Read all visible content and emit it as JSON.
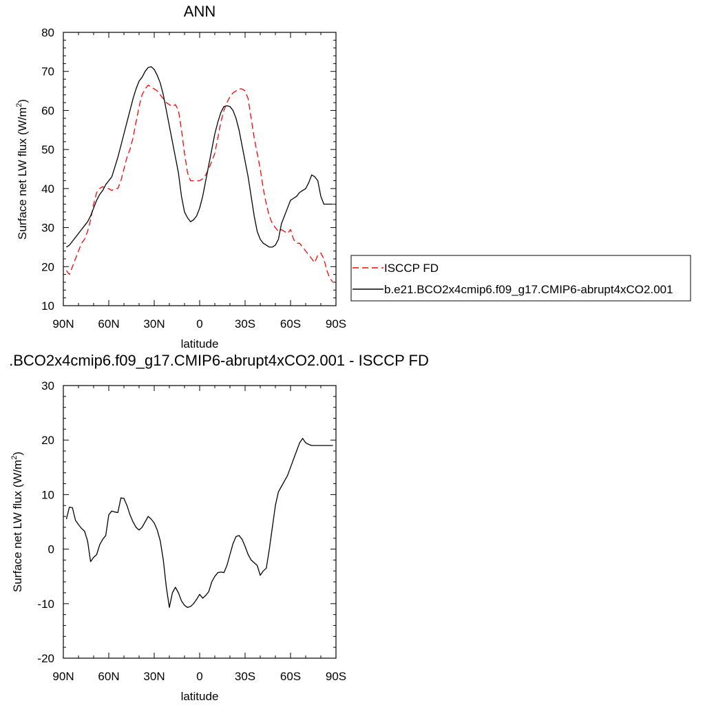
{
  "chart_data": [
    {
      "type": "line",
      "title": "ANN",
      "xlabel": "latitude",
      "ylabel": "Surface net LW flux (W/m",
      "ylabel_sup": "2",
      "ylabel_close": ")",
      "xlim": [
        90,
        -90
      ],
      "ylim": [
        10,
        80
      ],
      "xticks": [
        90,
        60,
        30,
        0,
        -30,
        -60,
        -90
      ],
      "xtick_labels": [
        "90N",
        "60N",
        "30N",
        "0",
        "30S",
        "60S",
        "90S"
      ],
      "yticks": [
        10,
        20,
        30,
        40,
        50,
        60,
        70,
        80
      ],
      "ytick_labels": [
        "10",
        "20",
        "30",
        "40",
        "50",
        "60",
        "70",
        "80"
      ],
      "legend_position": "right",
      "series": [
        {
          "name": "ISCCP FD",
          "color": "#ff0000",
          "dash": true,
          "x": [
            88,
            86,
            84,
            82,
            80,
            78,
            76,
            74,
            72,
            70,
            68,
            66,
            64,
            62,
            60,
            58,
            56,
            54,
            52,
            50,
            48,
            46,
            44,
            42,
            40,
            38,
            36,
            34,
            32,
            30,
            28,
            26,
            24,
            22,
            20,
            18,
            16,
            14,
            12,
            10,
            8,
            6,
            4,
            2,
            0,
            -2,
            -4,
            -6,
            -8,
            -10,
            -12,
            -14,
            -16,
            -18,
            -20,
            -22,
            -24,
            -26,
            -28,
            -30,
            -32,
            -34,
            -36,
            -38,
            -40,
            -42,
            -44,
            -46,
            -48,
            -50,
            -52,
            -54,
            -56,
            -58,
            -60,
            -62,
            -64,
            -66,
            -68,
            -70,
            -72,
            -74,
            -76,
            -78,
            -80,
            -82,
            -84,
            -86,
            -88
          ],
          "y": [
            19,
            18,
            20,
            22,
            24,
            26,
            27,
            29,
            32,
            36,
            39,
            40,
            40.5,
            40,
            40,
            39.5,
            40,
            40,
            42,
            45,
            48,
            50,
            53,
            57,
            61,
            64,
            65.5,
            66.5,
            66,
            65.5,
            65,
            64,
            63,
            62,
            61.5,
            61,
            61.5,
            60,
            55,
            49,
            44,
            42,
            42,
            42,
            42,
            42.5,
            43.5,
            45,
            47,
            49,
            53,
            57,
            60,
            62,
            63.5,
            64.5,
            65,
            65.5,
            65.5,
            65,
            63,
            58,
            53,
            49,
            45,
            40,
            36,
            33,
            31,
            30,
            29,
            29.5,
            29,
            28.5,
            29.5,
            27,
            26,
            26,
            25,
            24,
            23,
            22,
            21,
            23,
            23.5,
            22,
            19,
            17,
            16
          ]
        },
        {
          "name": "b.e21.BCO2x4cmip6.f09_g17.CMIP6-abrupt4xCO2.001",
          "color": "#000000",
          "dash": false,
          "x": [
            88,
            86,
            84,
            82,
            80,
            78,
            76,
            74,
            72,
            70,
            68,
            66,
            64,
            62,
            60,
            58,
            56,
            54,
            52,
            50,
            48,
            46,
            44,
            42,
            40,
            38,
            36,
            34,
            32,
            30,
            28,
            26,
            24,
            22,
            20,
            18,
            16,
            14,
            12,
            10,
            8,
            6,
            4,
            2,
            0,
            -2,
            -4,
            -6,
            -8,
            -10,
            -12,
            -14,
            -16,
            -18,
            -20,
            -22,
            -24,
            -26,
            -28,
            -30,
            -32,
            -34,
            -36,
            -38,
            -40,
            -42,
            -44,
            -46,
            -48,
            -50,
            -52,
            -54,
            -56,
            -58,
            -60,
            -62,
            -64,
            -66,
            -68,
            -70,
            -72,
            -74,
            -76,
            -78,
            -80,
            -82,
            -84,
            -86,
            -88
          ],
          "y": [
            25,
            25.5,
            26.5,
            27.5,
            28.5,
            29.5,
            30.5,
            31.5,
            33,
            35,
            37,
            38.5,
            39.5,
            41,
            42,
            43,
            45.5,
            48,
            51,
            54,
            57,
            60,
            63,
            65.5,
            67.5,
            68.5,
            70,
            71,
            71.2,
            70.5,
            69,
            67,
            64,
            60,
            56,
            52,
            48,
            44,
            38,
            34,
            32.5,
            31.5,
            32,
            33,
            35,
            38,
            42,
            46,
            50,
            54,
            57,
            59.5,
            61,
            61.2,
            61,
            60,
            58,
            55,
            51,
            47,
            43,
            38,
            33,
            29,
            27,
            26,
            25.5,
            25,
            25,
            25.5,
            27,
            31,
            33,
            35,
            37,
            37.5,
            38,
            39,
            39.5,
            40,
            41.5,
            43.5,
            43,
            42,
            38,
            36,
            36,
            36,
            36
          ]
        }
      ]
    },
    {
      "type": "line",
      "title": ".BCO2x4cmip6.f09_g17.CMIP6-abrupt4xCO2.001 - ISCCP FD",
      "xlabel": "latitude",
      "ylabel": "Surface net LW flux (W/m",
      "ylabel_sup": "2",
      "ylabel_close": ")",
      "xlim": [
        90,
        -90
      ],
      "ylim": [
        -20,
        30
      ],
      "xticks": [
        90,
        60,
        30,
        0,
        -30,
        -60,
        -90
      ],
      "xtick_labels": [
        "90N",
        "60N",
        "30N",
        "0",
        "30S",
        "60S",
        "90S"
      ],
      "yticks": [
        -20,
        -10,
        0,
        10,
        20,
        30
      ],
      "ytick_labels": [
        "-20",
        "-10",
        "0",
        "10",
        "20",
        "30"
      ],
      "series": [
        {
          "color": "#000000",
          "dash": false,
          "x": [
            88,
            86,
            84,
            82,
            80,
            78,
            76,
            74,
            72,
            70,
            68,
            66,
            64,
            62,
            60,
            58,
            56,
            54,
            52,
            50,
            48,
            46,
            44,
            42,
            40,
            38,
            36,
            34,
            32,
            30,
            28,
            26,
            24,
            22,
            20,
            18,
            16,
            14,
            12,
            10,
            8,
            6,
            4,
            2,
            0,
            -2,
            -4,
            -6,
            -8,
            -10,
            -12,
            -14,
            -16,
            -18,
            -20,
            -22,
            -24,
            -26,
            -28,
            -30,
            -32,
            -34,
            -36,
            -38,
            -40,
            -42,
            -44,
            -46,
            -48,
            -50,
            -52,
            -54,
            -56,
            -58,
            -60,
            -62,
            -64,
            -66,
            -68,
            -70,
            -72,
            -74,
            -76,
            -78,
            -80,
            -82,
            -84,
            -86,
            -88
          ],
          "y": [
            5.5,
            7.7,
            7.6,
            5.3,
            4.5,
            3.8,
            3.3,
            1.5,
            -2.3,
            -1.5,
            -1,
            0.8,
            1.8,
            2.5,
            6.3,
            7,
            6.8,
            6.7,
            9.4,
            9.3,
            8,
            6.3,
            5,
            4,
            3.5,
            4,
            5,
            6,
            5.5,
            4.8,
            3.5,
            1.5,
            -2,
            -7,
            -10.7,
            -8,
            -7,
            -8,
            -9.5,
            -10.3,
            -10.7,
            -10.5,
            -10,
            -9.2,
            -8.3,
            -9,
            -8.5,
            -7.8,
            -6,
            -5,
            -4.3,
            -4.2,
            -4.3,
            -3,
            -1,
            1,
            2.3,
            2.5,
            1.8,
            0.5,
            -1,
            -2,
            -2.5,
            -3,
            -4.8,
            -4,
            -3.5,
            0,
            4,
            8,
            10.5,
            11.5,
            12.5,
            13.5,
            15,
            16.5,
            18,
            19.5,
            20.3,
            19.5,
            19.2,
            19,
            19,
            19,
            19,
            19,
            19,
            19,
            19
          ]
        }
      ]
    }
  ]
}
